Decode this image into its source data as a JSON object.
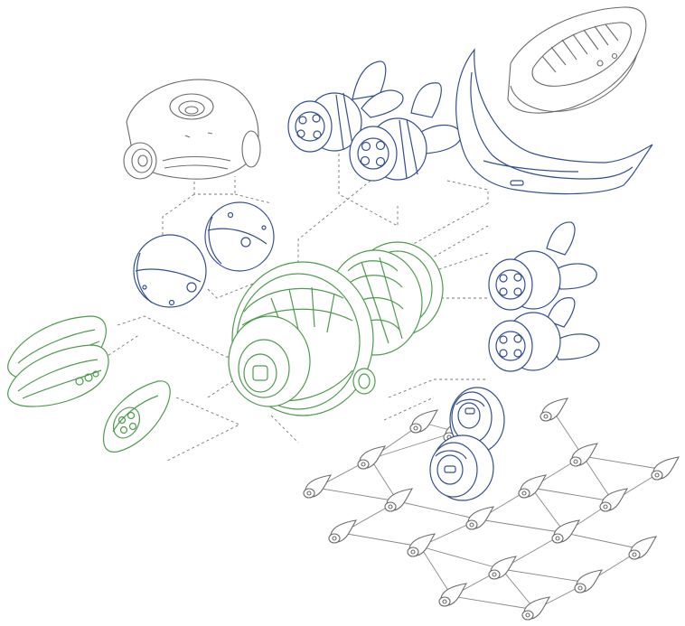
{
  "figure": {
    "colors": {
      "component_outline": "#6b6b6b",
      "secondary_assembly": "#35508f",
      "primary_assembly": "#4e9b4e",
      "leader_lines": "#777777",
      "background": "#ffffff"
    },
    "style": "exploded-view line drawing",
    "parts": [
      {
        "id": "bracelet",
        "color": "grey"
      },
      {
        "id": "three-port-housing",
        "color": "grey"
      },
      {
        "id": "thruster-pair-top",
        "color": "blue"
      },
      {
        "id": "swept-wing-fin",
        "color": "blue"
      },
      {
        "id": "sphere-module-pair",
        "color": "blue"
      },
      {
        "id": "central-turbine-core",
        "color": "green"
      },
      {
        "id": "thruster-pair-right",
        "color": "blue"
      },
      {
        "id": "twin-pod-stack",
        "color": "green"
      },
      {
        "id": "single-pod",
        "color": "green"
      },
      {
        "id": "disc-coupling-pair",
        "color": "blue"
      },
      {
        "id": "node-lattice",
        "color": "grey"
      }
    ]
  }
}
